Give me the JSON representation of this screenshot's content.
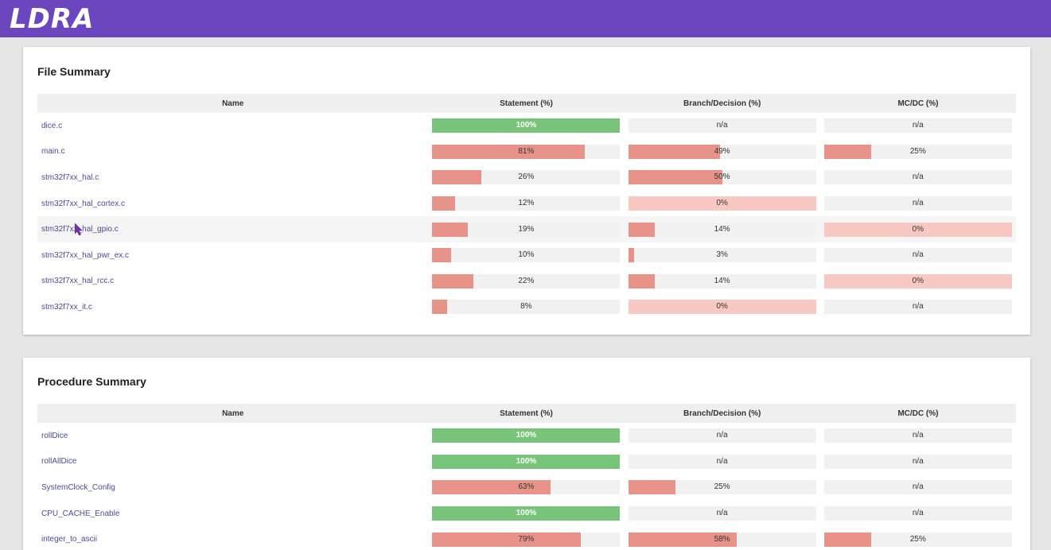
{
  "header": {
    "logo_text": "LDRA",
    "brand_color": "#6c46be"
  },
  "colors": {
    "full": "#77c47a",
    "partial": "#e8938a",
    "zero": "#f8c8c3",
    "empty": "#f1f1f1"
  },
  "file_summary": {
    "title": "File Summary",
    "columns": [
      "Name",
      "Statement (%)",
      "Branch/Decision (%)",
      "MC/DC (%)"
    ],
    "rows": [
      {
        "name": "dice.c",
        "statement": {
          "label": "100%",
          "value": 100
        },
        "branch": {
          "label": "n/a",
          "value": null
        },
        "mcdc": {
          "label": "n/a",
          "value": null
        }
      },
      {
        "name": "main.c",
        "statement": {
          "label": "81%",
          "value": 81
        },
        "branch": {
          "label": "49%",
          "value": 49
        },
        "mcdc": {
          "label": "25%",
          "value": 25
        }
      },
      {
        "name": "stm32f7xx_hal.c",
        "statement": {
          "label": "26%",
          "value": 26
        },
        "branch": {
          "label": "50%",
          "value": 50
        },
        "mcdc": {
          "label": "n/a",
          "value": null
        }
      },
      {
        "name": "stm32f7xx_hal_cortex.c",
        "statement": {
          "label": "12%",
          "value": 12
        },
        "branch": {
          "label": "0%",
          "value": 0
        },
        "mcdc": {
          "label": "n/a",
          "value": null
        }
      },
      {
        "name": "stm32f7xx_hal_gpio.c",
        "statement": {
          "label": "19%",
          "value": 19
        },
        "branch": {
          "label": "14%",
          "value": 14
        },
        "mcdc": {
          "label": "0%",
          "value": 0
        }
      },
      {
        "name": "stm32f7xx_hal_pwr_ex.c",
        "statement": {
          "label": "10%",
          "value": 10
        },
        "branch": {
          "label": "3%",
          "value": 3
        },
        "mcdc": {
          "label": "n/a",
          "value": null
        }
      },
      {
        "name": "stm32f7xx_hal_rcc.c",
        "statement": {
          "label": "22%",
          "value": 22
        },
        "branch": {
          "label": "14%",
          "value": 14
        },
        "mcdc": {
          "label": "0%",
          "value": 0
        }
      },
      {
        "name": "stm32f7xx_it.c",
        "statement": {
          "label": "8%",
          "value": 8
        },
        "branch": {
          "label": "0%",
          "value": 0
        },
        "mcdc": {
          "label": "n/a",
          "value": null
        }
      }
    ]
  },
  "procedure_summary": {
    "title": "Procedure Summary",
    "columns": [
      "Name",
      "Statement (%)",
      "Branch/Decision (%)",
      "MC/DC (%)"
    ],
    "rows": [
      {
        "name": "rollDice",
        "statement": {
          "label": "100%",
          "value": 100
        },
        "branch": {
          "label": "n/a",
          "value": null
        },
        "mcdc": {
          "label": "n/a",
          "value": null
        }
      },
      {
        "name": "rollAllDice",
        "statement": {
          "label": "100%",
          "value": 100
        },
        "branch": {
          "label": "n/a",
          "value": null
        },
        "mcdc": {
          "label": "n/a",
          "value": null
        }
      },
      {
        "name": "SystemClock_Config",
        "statement": {
          "label": "63%",
          "value": 63
        },
        "branch": {
          "label": "25%",
          "value": 25
        },
        "mcdc": {
          "label": "n/a",
          "value": null
        }
      },
      {
        "name": "CPU_CACHE_Enable",
        "statement": {
          "label": "100%",
          "value": 100
        },
        "branch": {
          "label": "n/a",
          "value": null
        },
        "mcdc": {
          "label": "n/a",
          "value": null
        }
      },
      {
        "name": "integer_to_ascii",
        "statement": {
          "label": "79%",
          "value": 79
        },
        "branch": {
          "label": "58%",
          "value": 58
        },
        "mcdc": {
          "label": "25%",
          "value": 25
        }
      }
    ]
  }
}
